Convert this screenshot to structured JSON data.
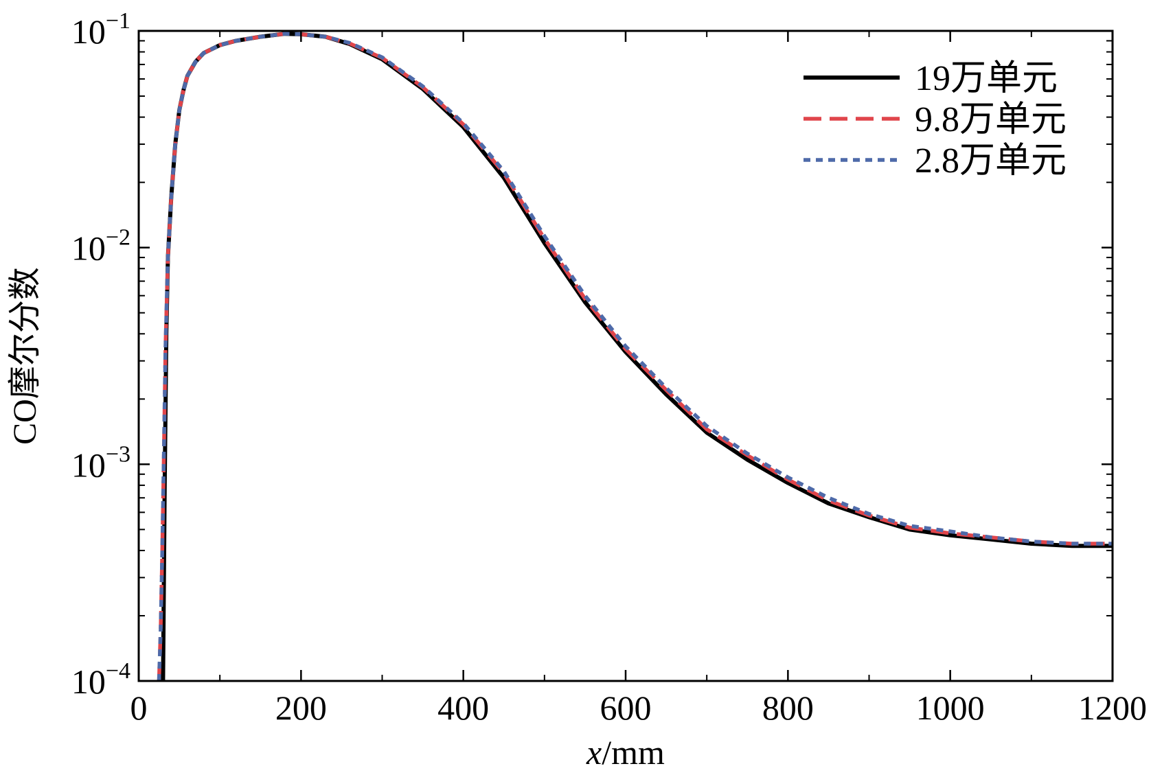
{
  "chart_data": {
    "type": "line",
    "xlabel_italic": "x",
    "xlabel_rest": "/mm",
    "ylabel": "CO摩尔分数",
    "xlim": [
      0,
      1200
    ],
    "ylim": [
      0.0001,
      0.1
    ],
    "yscale": "log",
    "x_ticks": [
      0,
      200,
      400,
      600,
      800,
      1000,
      1200
    ],
    "x_tick_labels": [
      "0",
      "200",
      "400",
      "600",
      "800",
      "1000",
      "1200"
    ],
    "y_ticks": [
      0.1,
      0.01,
      0.001,
      0.0001
    ],
    "y_tick_labels": [
      {
        "base": "10",
        "exp": "−1"
      },
      {
        "base": "10",
        "exp": "−2"
      },
      {
        "base": "10",
        "exp": "−3"
      },
      {
        "base": "10",
        "exp": "−4"
      }
    ],
    "grid": false,
    "legend_position": "top-right",
    "series": [
      {
        "name": "19万单元",
        "color": "#000000",
        "style": "solid",
        "x": [
          30,
          32,
          34,
          36,
          40,
          45,
          50,
          55,
          60,
          70,
          80,
          100,
          120,
          150,
          180,
          200,
          230,
          260,
          300,
          350,
          400,
          450,
          500,
          550,
          600,
          650,
          700,
          750,
          800,
          850,
          900,
          950,
          1000,
          1050,
          1100,
          1150,
          1200
        ],
        "y": [
          0.0001,
          0.0008,
          0.004,
          0.009,
          0.017,
          0.03,
          0.043,
          0.053,
          0.062,
          0.072,
          0.079,
          0.086,
          0.09,
          0.094,
          0.097,
          0.0965,
          0.094,
          0.087,
          0.074,
          0.054,
          0.036,
          0.021,
          0.0105,
          0.0056,
          0.0033,
          0.0021,
          0.0014,
          0.00105,
          0.00082,
          0.00066,
          0.00057,
          0.0005,
          0.00047,
          0.00045,
          0.00043,
          0.00042,
          0.00042
        ]
      },
      {
        "name": "9.8万单元",
        "color": "#e0454b",
        "style": "dashed",
        "x": [
          25,
          27,
          29,
          31,
          33,
          36,
          40,
          45,
          50,
          55,
          60,
          70,
          80,
          100,
          120,
          150,
          180,
          200,
          230,
          260,
          300,
          350,
          400,
          450,
          500,
          550,
          600,
          650,
          700,
          750,
          800,
          850,
          900,
          950,
          1000,
          1050,
          1100,
          1150,
          1200
        ],
        "y": [
          0.0001,
          0.00017,
          0.0004,
          0.0011,
          0.0035,
          0.009,
          0.017,
          0.03,
          0.043,
          0.053,
          0.062,
          0.072,
          0.079,
          0.086,
          0.09,
          0.094,
          0.097,
          0.0965,
          0.094,
          0.0875,
          0.075,
          0.055,
          0.037,
          0.022,
          0.011,
          0.0058,
          0.0034,
          0.0022,
          0.00145,
          0.0011,
          0.00085,
          0.00068,
          0.00058,
          0.00051,
          0.00048,
          0.00046,
          0.00044,
          0.00043,
          0.00043
        ]
      },
      {
        "name": "2.8万单元",
        "color": "#4e6aa9",
        "style": "dotted",
        "x": [
          25,
          27,
          29,
          31,
          33,
          36,
          40,
          45,
          50,
          55,
          60,
          70,
          80,
          100,
          120,
          150,
          180,
          200,
          230,
          260,
          300,
          350,
          400,
          450,
          500,
          550,
          600,
          650,
          700,
          750,
          800,
          850,
          900,
          950,
          1000,
          1050,
          1100,
          1150,
          1200
        ],
        "y": [
          0.0001,
          0.00017,
          0.0004,
          0.0011,
          0.0035,
          0.009,
          0.017,
          0.03,
          0.043,
          0.053,
          0.062,
          0.072,
          0.079,
          0.086,
          0.09,
          0.094,
          0.097,
          0.0965,
          0.094,
          0.088,
          0.0755,
          0.0555,
          0.0375,
          0.0225,
          0.0113,
          0.006,
          0.0035,
          0.00225,
          0.0015,
          0.00112,
          0.00087,
          0.0007,
          0.00059,
          0.00052,
          0.00049,
          0.00046,
          0.00044,
          0.00043,
          0.00043
        ]
      }
    ]
  }
}
